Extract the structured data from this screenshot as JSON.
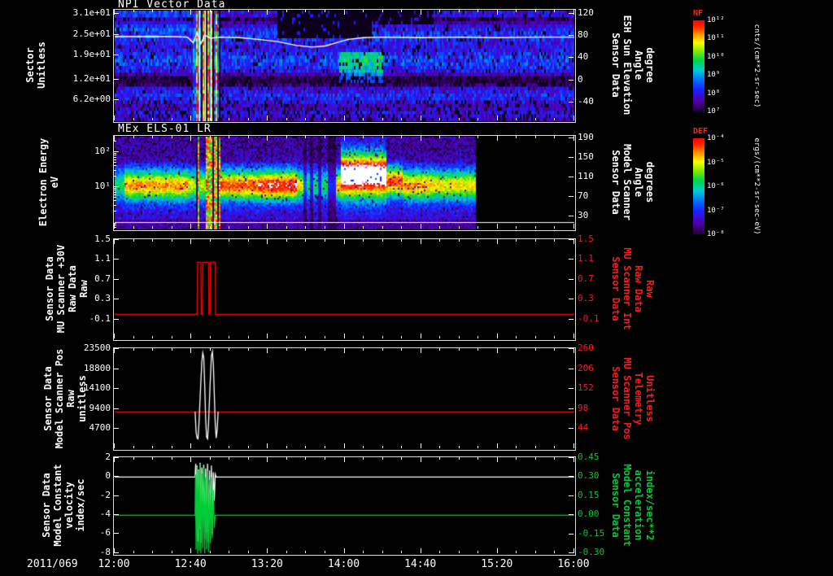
{
  "page": {
    "background": "#000000"
  },
  "xaxis": {
    "date_label": "2011/069",
    "tick_labels": [
      "12:00",
      "12:40",
      "13:20",
      "14:00",
      "14:40",
      "15:20",
      "16:00"
    ],
    "tick_minutes": [
      0,
      40,
      80,
      120,
      160,
      200,
      240
    ],
    "minor_step_min": 10,
    "start_min": 0,
    "end_min": 240
  },
  "chart_data": [
    {
      "id": "npi",
      "type": "heatmap",
      "title": "NPI Vector Data",
      "left_axis": {
        "label_lines": [
          "Sector",
          "Unitless"
        ],
        "min": 0,
        "max": 32,
        "ticks": [
          {
            "v": 31,
            "label": "3.1e+01"
          },
          {
            "v": 25,
            "label": "2.5e+01"
          },
          {
            "v": 19,
            "label": "1.9e+01"
          },
          {
            "v": 12,
            "label": "1.2e+01"
          },
          {
            "v": 6.2,
            "label": "6.2e+00"
          }
        ]
      },
      "right_axis": {
        "label_lines": [
          "Sensor Data",
          "ESH Sun Elevation",
          "Angle",
          "degree"
        ],
        "min": -74,
        "max": 126,
        "color": "#ffffff",
        "ticks": [
          {
            "v": 120,
            "label": "120"
          },
          {
            "v": 80,
            "label": "80"
          },
          {
            "v": 40,
            "label": "40"
          },
          {
            "v": 0,
            "label": "0"
          },
          {
            "v": -40,
            "label": "-40"
          }
        ]
      },
      "colorbar": {
        "title": "NF",
        "title_color": "#ff2a00",
        "ticks": [
          "10¹²",
          "10¹¹",
          "10¹⁰",
          "10⁹",
          "10⁸",
          "10⁷"
        ],
        "units": "cnts/(cm**2-sr-sec)"
      },
      "overlay_line": {
        "name": "sun-elevation-angle",
        "color": "#ffffff",
        "axis": "right",
        "points": [
          [
            0,
            79
          ],
          [
            30,
            79
          ],
          [
            38,
            78
          ],
          [
            41,
            68
          ],
          [
            43,
            86
          ],
          [
            45,
            66
          ],
          [
            47,
            82
          ],
          [
            50,
            76
          ],
          [
            55,
            78
          ],
          [
            65,
            77
          ],
          [
            75,
            74
          ],
          [
            85,
            70
          ],
          [
            95,
            63
          ],
          [
            103,
            60
          ],
          [
            110,
            62
          ],
          [
            116,
            68
          ],
          [
            122,
            74
          ],
          [
            130,
            77
          ],
          [
            140,
            78
          ],
          [
            160,
            77
          ],
          [
            180,
            78
          ],
          [
            200,
            77
          ],
          [
            220,
            78
          ],
          [
            240,
            78
          ]
        ]
      },
      "event_window_min": [
        41,
        55
      ]
    },
    {
      "id": "els",
      "type": "heatmap",
      "title": "MEx ELS-01 LR",
      "left_axis": {
        "label_lines": [
          "Electron Energy",
          "eV"
        ],
        "scale": "log",
        "min": 0.62,
        "max": 280,
        "ticks": [
          {
            "v": 100,
            "label": "10²"
          },
          {
            "v": 10,
            "label": "10¹"
          }
        ]
      },
      "right_axis": {
        "label_lines": [
          "Sensor Data",
          "Model Scanner",
          "Angle",
          "degrees"
        ],
        "min": 4,
        "max": 194,
        "color": "#ffffff",
        "ticks": [
          {
            "v": 190,
            "label": "190"
          },
          {
            "v": 150,
            "label": "150"
          },
          {
            "v": 110,
            "label": "110"
          },
          {
            "v": 70,
            "label": "70"
          },
          {
            "v": 30,
            "label": "30"
          }
        ]
      },
      "colorbar": {
        "title": "DEF",
        "title_color": "#ff2a00",
        "ticks": [
          "10⁻⁴",
          "10⁻⁵",
          "10⁻⁶",
          "10⁻⁷",
          "10⁻⁸"
        ],
        "units": "ergs/(cm**2-sr-sec-eV)"
      },
      "data_end_min": 188,
      "event_window_min": [
        41,
        55
      ],
      "baseline_line": {
        "name": "spacecraft-potential-line",
        "color": "#ffffff",
        "frac_y": 0.92
      }
    },
    {
      "id": "mu30v",
      "type": "line",
      "left_axis": {
        "label_lines": [
          "Sensor Data",
          "MU Scanner +30V",
          "Raw Data",
          "Raw"
        ],
        "min": -0.5,
        "max": 1.5,
        "ticks": [
          {
            "v": 1.5,
            "label": "1.5"
          },
          {
            "v": 1.1,
            "label": "1.1"
          },
          {
            "v": 0.7,
            "label": "0.7"
          },
          {
            "v": 0.3,
            "label": "0.3"
          },
          {
            "v": -0.1,
            "label": "-0.1"
          }
        ]
      },
      "right_axis": {
        "label_lines": [
          "Sensor Data",
          "MU Scanner Int",
          "Raw Data",
          "Raw"
        ],
        "min": -0.5,
        "max": 1.5,
        "color": "#ff1a1a",
        "ticks": [
          {
            "v": 1.5,
            "label": "1.5"
          },
          {
            "v": 1.1,
            "label": "1.1"
          },
          {
            "v": 0.7,
            "label": "0.7"
          },
          {
            "v": 0.3,
            "label": "0.3"
          },
          {
            "v": -0.1,
            "label": "-0.1"
          }
        ]
      },
      "series": [
        {
          "name": "mu-scanner-int-raw",
          "color": "#ff0000",
          "axis": "left",
          "points": [
            [
              0,
              0
            ],
            [
              43,
              0
            ],
            [
              43.3,
              1.05
            ],
            [
              45,
              1.05
            ],
            [
              45.2,
              0
            ],
            [
              45.8,
              0
            ],
            [
              46,
              1.05
            ],
            [
              49,
              1.05
            ],
            [
              49.2,
              0
            ],
            [
              49.8,
              0
            ],
            [
              50,
              1.05
            ],
            [
              52.5,
              1.05
            ],
            [
              52.7,
              0
            ],
            [
              240,
              0
            ]
          ]
        }
      ]
    },
    {
      "id": "scanpos",
      "type": "line",
      "left_axis": {
        "label_lines": [
          "Sensor Data",
          "Model Scanner Pos",
          "Raw",
          "unitless"
        ],
        "min": 0,
        "max": 23500,
        "ticks": [
          {
            "v": 23500,
            "label": "23500"
          },
          {
            "v": 18800,
            "label": "18800"
          },
          {
            "v": 14100,
            "label": "14100"
          },
          {
            "v": 9400,
            "label": "9400"
          },
          {
            "v": 4700,
            "label": "4700"
          }
        ]
      },
      "right_axis": {
        "label_lines": [
          "Sensor Data",
          "MU Scanner Pos",
          "Telemetry",
          "Unitless"
        ],
        "min": -10,
        "max": 260,
        "color": "#ff1a1a",
        "ticks": [
          {
            "v": 260,
            "label": "260"
          },
          {
            "v": 206,
            "label": "206"
          },
          {
            "v": 152,
            "label": "152"
          },
          {
            "v": 98,
            "label": "98"
          },
          {
            "v": 44,
            "label": "44"
          }
        ]
      },
      "series": [
        {
          "name": "mu-scanner-pos-telemetry",
          "color": "#ff0000",
          "axis": "right",
          "points": [
            [
              0,
              90
            ],
            [
              240,
              90
            ]
          ]
        },
        {
          "name": "model-scanner-pos-raw",
          "color": "#ffffff",
          "axis": "left",
          "points": [
            [
              42,
              8800
            ],
            [
              42.5,
              4000
            ],
            [
              43,
              2600
            ],
            [
              43.5,
              2400
            ],
            [
              44,
              6000
            ],
            [
              44.8,
              14000
            ],
            [
              45.5,
              20500
            ],
            [
              46,
              22600
            ],
            [
              46.5,
              21500
            ],
            [
              47,
              15000
            ],
            [
              47.5,
              7000
            ],
            [
              48,
              2800
            ],
            [
              48.5,
              2400
            ],
            [
              49,
              6000
            ],
            [
              49.8,
              15000
            ],
            [
              50.5,
              21800
            ],
            [
              51,
              22900
            ],
            [
              51.5,
              20000
            ],
            [
              52,
              13000
            ],
            [
              52.5,
              6000
            ],
            [
              53,
              2600
            ],
            [
              53.5,
              4500
            ],
            [
              54,
              8800
            ]
          ]
        }
      ]
    },
    {
      "id": "modelconst",
      "type": "line",
      "left_axis": {
        "label_lines": [
          "Sensor Data",
          "Model Constant",
          "velocity",
          "index/sec"
        ],
        "min": -8.1,
        "max": 2,
        "ticks": [
          {
            "v": 2,
            "label": "2"
          },
          {
            "v": 0,
            "label": "0"
          },
          {
            "v": -2,
            "label": "-2"
          },
          {
            "v": -4,
            "label": "-4"
          },
          {
            "v": -6,
            "label": "-6"
          },
          {
            "v": -8,
            "label": "-8"
          }
        ]
      },
      "right_axis": {
        "label_lines": [
          "Sensor Data",
          "Model Constant",
          "acceleration",
          "index/sec**2"
        ],
        "min": -0.305,
        "max": 0.45,
        "color": "#00cc33",
        "ticks": [
          {
            "v": 0.45,
            "label": "0.45"
          },
          {
            "v": 0.3,
            "label": "0.30"
          },
          {
            "v": 0.15,
            "label": "0.15"
          },
          {
            "v": 0,
            "label": "0.00"
          },
          {
            "v": -0.15,
            "label": "-0.15"
          },
          {
            "v": -0.3,
            "label": "-0.30"
          }
        ]
      },
      "series": [
        {
          "name": "model-constant-velocity",
          "color": "#ffffff",
          "axis": "left",
          "points": [
            [
              0,
              0
            ],
            [
              42,
              0
            ],
            [
              42.3,
              1.4
            ],
            [
              42.6,
              -4.5
            ],
            [
              43,
              1.2
            ],
            [
              43.4,
              -6.8
            ],
            [
              43.8,
              0.8
            ],
            [
              44.2,
              -5.5
            ],
            [
              44.6,
              1.5
            ],
            [
              45,
              -6.9
            ],
            [
              45.5,
              1.0
            ],
            [
              46,
              -4
            ],
            [
              46.5,
              1.3
            ],
            [
              47,
              -6.5
            ],
            [
              47.5,
              0.9
            ],
            [
              48,
              -5.8
            ],
            [
              48.5,
              1.4
            ],
            [
              49,
              -6.9
            ],
            [
              49.5,
              0.7
            ],
            [
              50,
              -4.5
            ],
            [
              50.5,
              1.2
            ],
            [
              51,
              -6
            ],
            [
              51.5,
              0.5
            ],
            [
              52,
              -2.5
            ],
            [
              52.5,
              0.3
            ],
            [
              53,
              0
            ],
            [
              240,
              0
            ]
          ]
        },
        {
          "name": "model-constant-acceleration",
          "color": "#00cc33",
          "axis": "right",
          "points": [
            [
              0,
              0
            ],
            [
              42,
              0
            ],
            [
              42.2,
              0.32
            ],
            [
              42.5,
              -0.27
            ],
            [
              42.9,
              0.38
            ],
            [
              43.3,
              -0.3
            ],
            [
              43.7,
              0.35
            ],
            [
              44.1,
              -0.28
            ],
            [
              44.5,
              0.4
            ],
            [
              45,
              -0.3
            ],
            [
              45.5,
              0.33
            ],
            [
              46,
              -0.26
            ],
            [
              46.5,
              0.37
            ],
            [
              47,
              -0.3
            ],
            [
              47.5,
              0.3
            ],
            [
              48,
              -0.27
            ],
            [
              48.5,
              0.35
            ],
            [
              49,
              -0.29
            ],
            [
              49.5,
              0.28
            ],
            [
              50,
              -0.22
            ],
            [
              50.5,
              0.3
            ],
            [
              51,
              -0.18
            ],
            [
              51.5,
              0.2
            ],
            [
              52,
              -0.1
            ],
            [
              52.5,
              0
            ],
            [
              240,
              0
            ]
          ]
        }
      ]
    }
  ]
}
